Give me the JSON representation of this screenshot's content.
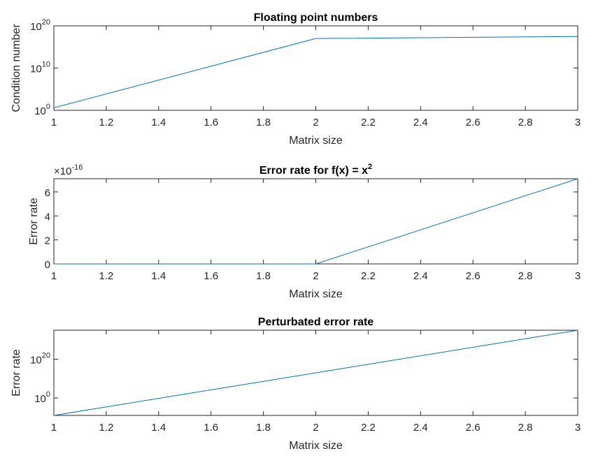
{
  "colors": {
    "series": "#0072BD",
    "axis": "#262626",
    "background": "#ffffff"
  },
  "chart_data": [
    {
      "type": "line",
      "title": "Floating point numbers",
      "xlabel": "Matrix size",
      "ylabel": "Condition number",
      "yscale": "log",
      "xlim": [
        1,
        3
      ],
      "ylim": [
        1,
        1e+20
      ],
      "xticks": [
        1,
        1.2,
        1.4,
        1.6,
        1.8,
        2,
        2.2,
        2.4,
        2.6,
        2.8,
        3
      ],
      "yticks": [
        1,
        10000000000.0,
        1e+20
      ],
      "ytick_labels": [
        {
          "base": "10",
          "exp": "0"
        },
        {
          "base": "10",
          "exp": "10"
        },
        {
          "base": "10",
          "exp": "20"
        }
      ],
      "grid": false,
      "series": [
        {
          "x": [
            1,
            2,
            3
          ],
          "y": [
            4,
            1e+17,
            3e+17
          ]
        }
      ]
    },
    {
      "type": "line",
      "title": "Error rate for f(x) = x",
      "title_sup": "2",
      "xlabel": "Matrix size",
      "ylabel": "Error rate",
      "yscale": "linear",
      "xlim": [
        1,
        3
      ],
      "ylim": [
        0,
        7.1e-16
      ],
      "xticks": [
        1,
        1.2,
        1.4,
        1.6,
        1.8,
        2,
        2.2,
        2.4,
        2.6,
        2.8,
        3
      ],
      "yticks": [
        0,
        2e-16,
        4e-16,
        6e-16
      ],
      "ytick_labels": [
        "0",
        "2",
        "4",
        "6"
      ],
      "exponent_label": {
        "base": "×10",
        "exp": "-16"
      },
      "grid": false,
      "series": [
        {
          "x": [
            1,
            2,
            3
          ],
          "y": [
            0,
            0,
            7.1e-16
          ]
        }
      ]
    },
    {
      "type": "line",
      "title": "Perturbated error rate",
      "xlabel": "Matrix size",
      "ylabel": "Error rate",
      "yscale": "log",
      "xlim": [
        1,
        3
      ],
      "ylim": [
        1e-09,
        1e+35
      ],
      "xticks": [
        1,
        1.2,
        1.4,
        1.6,
        1.8,
        2,
        2.2,
        2.4,
        2.6,
        2.8,
        3
      ],
      "yticks": [
        1,
        1e+20
      ],
      "ytick_labels": [
        {
          "base": "10",
          "exp": "0"
        },
        {
          "base": "10",
          "exp": "20"
        }
      ],
      "grid": false,
      "series": [
        {
          "x": [
            1,
            2,
            3
          ],
          "y": [
            1e-09,
            10000000000000.0,
            1e+35
          ]
        }
      ]
    }
  ]
}
